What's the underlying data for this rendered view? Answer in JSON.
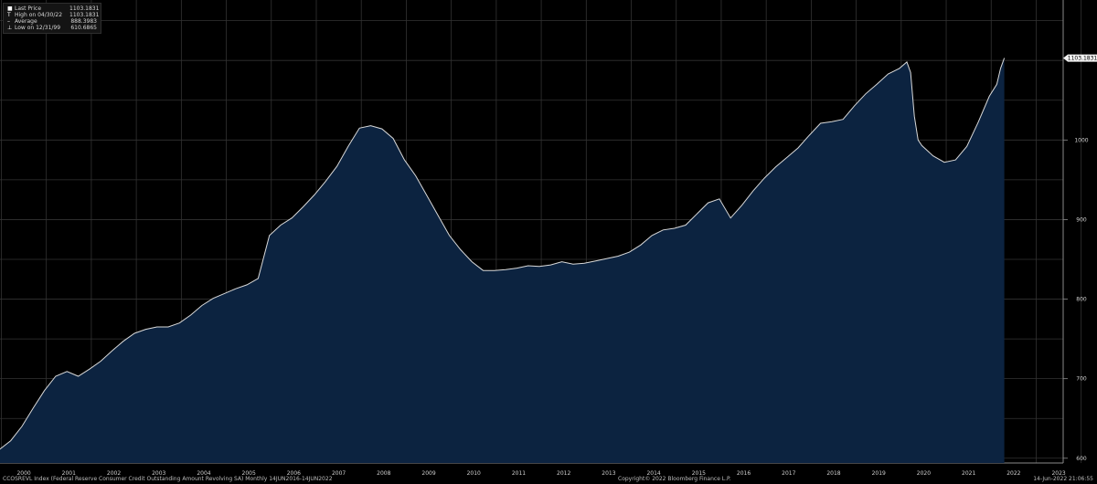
{
  "legend": {
    "rows": [
      {
        "icon": "square-icon",
        "label": "Last Price",
        "value": "1103.1831"
      },
      {
        "icon": "t-high-icon",
        "label": "High on 04/30/22",
        "value": "1103.1831"
      },
      {
        "icon": "dash-average-icon",
        "label": "Average",
        "value": "888.3983"
      },
      {
        "icon": "l-low-icon",
        "label": "Low on 12/31/99",
        "value": "610.6865"
      }
    ]
  },
  "footer": {
    "left": "CCOSREVL Index (Federal Reserve Consumer Credit Outstanding Amount Revolving SA)  Monthly 14JUN2016-14JUN2022",
    "middle": "Copyright© 2022 Bloomberg Finance L.P.",
    "right": "14-Jun-2022 21:06:55"
  },
  "colors": {
    "background": "#000000",
    "area_fill": "#0c2340",
    "line": "#d9d9d9",
    "grid": "#333333",
    "last_price_tag": "#f2f2f2"
  },
  "chart_data": {
    "type": "area",
    "title": "",
    "xlabel": "",
    "ylabel": "",
    "ylim": [
      594,
      1176
    ],
    "xlim": [
      1999.97,
      2023.6
    ],
    "grid": true,
    "y_axis_side": "right",
    "x_tick_labels": [
      "2000",
      "2001",
      "2002",
      "2003",
      "2004",
      "2005",
      "2006",
      "2007",
      "2008",
      "2009",
      "2010",
      "2011",
      "2012",
      "2013",
      "2014",
      "2015",
      "2016",
      "2017",
      "2018",
      "2019",
      "2020",
      "2021",
      "2022",
      "2023"
    ],
    "y_tick_labels": [
      "600",
      "700",
      "800",
      "900",
      "1000"
    ],
    "last_value_label": "1103.1831",
    "series": [
      {
        "x": [
          "1999-12",
          "2000-03",
          "2000-06",
          "2000-09",
          "2000-12",
          "2001-03",
          "2001-06",
          "2001-09",
          "2001-12",
          "2002-03",
          "2002-06",
          "2002-09",
          "2002-12",
          "2003-03",
          "2003-06",
          "2003-09",
          "2003-12",
          "2004-03",
          "2004-06",
          "2004-09",
          "2004-12",
          "2005-03",
          "2005-06",
          "2005-09",
          "2005-12",
          "2006-03",
          "2006-06",
          "2006-09",
          "2006-12",
          "2007-03",
          "2007-06",
          "2007-09",
          "2007-12",
          "2008-03",
          "2008-06",
          "2008-09",
          "2008-12",
          "2009-03",
          "2009-06",
          "2009-09",
          "2009-12",
          "2010-03",
          "2010-06",
          "2010-09",
          "2010-12",
          "2011-03",
          "2011-06",
          "2011-09",
          "2011-12",
          "2012-03",
          "2012-06",
          "2012-09",
          "2012-12",
          "2013-03",
          "2013-06",
          "2013-09",
          "2013-12",
          "2014-03",
          "2014-06",
          "2014-09",
          "2014-12",
          "2015-03",
          "2015-06",
          "2015-09",
          "2015-12",
          "2016-03",
          "2016-06",
          "2016-09",
          "2016-12",
          "2017-03",
          "2017-06",
          "2017-09",
          "2017-12",
          "2018-03",
          "2018-06",
          "2018-09",
          "2018-12",
          "2019-03",
          "2019-06",
          "2019-09",
          "2019-12",
          "2020-02",
          "2020-03",
          "2020-04",
          "2020-05",
          "2020-06",
          "2020-09",
          "2020-12",
          "2021-03",
          "2021-06",
          "2021-09",
          "2021-12",
          "2022-02",
          "2022-03",
          "2022-04"
        ],
        "values": [
          611,
          622,
          640,
          663,
          685,
          703,
          709,
          703,
          712,
          722,
          735,
          747,
          757,
          762,
          765,
          765,
          770,
          780,
          792,
          801,
          807,
          813,
          818,
          826,
          880,
          893,
          902,
          916,
          931,
          948,
          967,
          992,
          1015,
          1018,
          1014,
          1002,
          975,
          955,
          930,
          905,
          880,
          862,
          847,
          836,
          836,
          837,
          839,
          842,
          841,
          843,
          847,
          844,
          845,
          848,
          851,
          854,
          859,
          868,
          880,
          887,
          889,
          893,
          907,
          921,
          926,
          902,
          918,
          936,
          952,
          966,
          978,
          990,
          1006,
          1021,
          1023,
          1026,
          1043,
          1058,
          1070,
          1083,
          1090,
          1098,
          1085,
          1030,
          1000,
          993,
          980,
          972,
          975,
          992,
          1022,
          1055,
          1070,
          1090,
          1103
        ]
      }
    ]
  }
}
